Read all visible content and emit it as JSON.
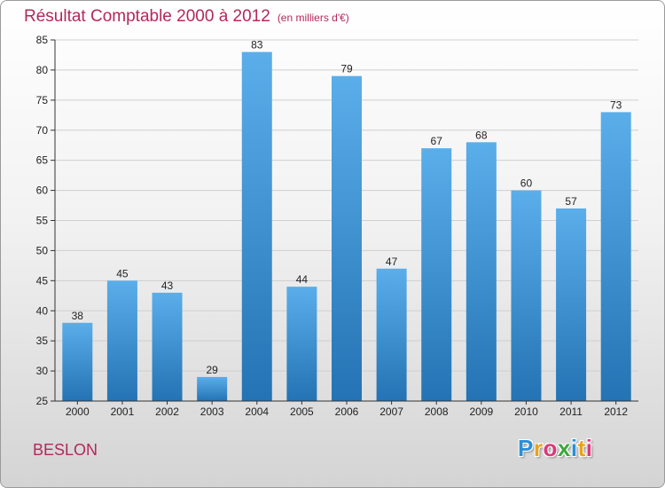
{
  "title": "Résultat Comptable 2000 à 2012",
  "unit": "(en milliers d'€)",
  "commune": "BESLON",
  "logo": {
    "letters": [
      "P",
      "r",
      "o",
      "x",
      "i",
      "t",
      "i"
    ],
    "colors": [
      "#2a8fd6",
      "#e8a21a",
      "#d93a7a",
      "#3aa83a",
      "#2a8fd6",
      "#e8a21a",
      "#d93a7a"
    ]
  },
  "colors": {
    "bar_light": "#5aaeea",
    "bar_dark": "#2473b4",
    "grid": "#cfcfcf",
    "axis": "#333333",
    "title": "#b3285b"
  },
  "chart_data": {
    "type": "bar",
    "title": "Résultat Comptable 2000 à 2012",
    "subtitle": "(en milliers d'€)",
    "categories": [
      "2000",
      "2001",
      "2002",
      "2003",
      "2004",
      "2005",
      "2006",
      "2007",
      "2008",
      "2009",
      "2010",
      "2011",
      "2012"
    ],
    "values": [
      38,
      45,
      43,
      29,
      83,
      44,
      79,
      47,
      67,
      68,
      60,
      57,
      73
    ],
    "yticks": [
      25,
      30,
      35,
      40,
      45,
      50,
      55,
      60,
      65,
      70,
      75,
      80,
      85
    ],
    "ylim": [
      25,
      85
    ],
    "xlabel": "",
    "ylabel": "",
    "grid": true
  }
}
